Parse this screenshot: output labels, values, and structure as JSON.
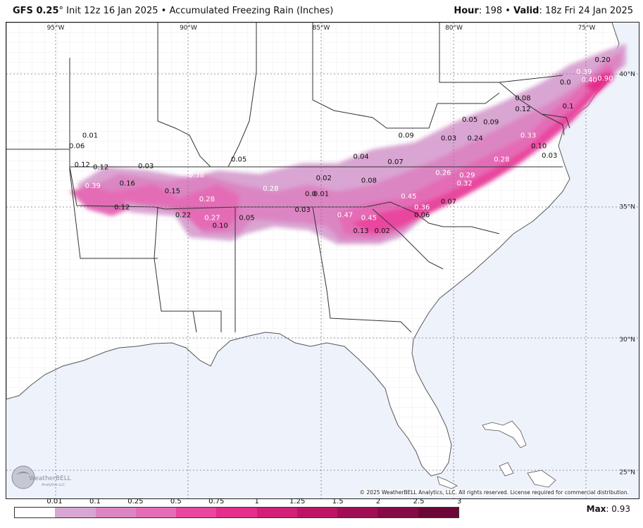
{
  "header": {
    "model": "GFS 0.25",
    "degree": "°",
    "init": "Init 12z 16 Jan 2025",
    "bullet": "•",
    "product": "Accumulated Freezing Rain (Inches)",
    "hour_label": "Hour",
    "hour_value": ": 198",
    "valid_label": "Valid",
    "valid_value": ": 18z Fri 24 Jan 2025"
  },
  "map": {
    "longitude_labels": [
      "95°W",
      "90°W",
      "85°W",
      "80°W",
      "75°W"
    ],
    "latitude_labels": [
      "40°N",
      "35°N",
      "30°N",
      "25°N"
    ],
    "copyright": "© 2025 WeatherBELL Analytics, LLC. All rights reserved. License required for commercial distribution.",
    "logo_text": "WeatherBELL",
    "logo_sub": "Analytics LLC",
    "region": "Southeastern United States"
  },
  "values": [
    {
      "text": "0.01",
      "lon": -93.7,
      "lat": 37.6
    },
    {
      "text": "0.06",
      "lon": -94.2,
      "lat": 37.2
    },
    {
      "text": "0.12",
      "lon": -94.0,
      "lat": 36.5
    },
    {
      "text": "0.12",
      "lon": -93.3,
      "lat": 36.4
    },
    {
      "text": "0.03",
      "lon": -91.6,
      "lat": 36.45
    },
    {
      "text": "0.05",
      "lon": -88.1,
      "lat": 36.7
    },
    {
      "text": "0.39",
      "lon": -93.6,
      "lat": 35.7
    },
    {
      "text": "0.16",
      "lon": -92.3,
      "lat": 35.8
    },
    {
      "text": "0.38",
      "lon": -89.7,
      "lat": 36.1
    },
    {
      "text": "0.15",
      "lon": -90.6,
      "lat": 35.5
    },
    {
      "text": "0.12",
      "lon": -92.5,
      "lat": 34.9
    },
    {
      "text": "0.28",
      "lon": -89.3,
      "lat": 35.2
    },
    {
      "text": "0.22",
      "lon": -90.2,
      "lat": 34.6
    },
    {
      "text": "0.27",
      "lon": -89.1,
      "lat": 34.5
    },
    {
      "text": "0.10",
      "lon": -88.8,
      "lat": 34.2
    },
    {
      "text": "0.05",
      "lon": -87.8,
      "lat": 34.5
    },
    {
      "text": "0.28",
      "lon": -86.9,
      "lat": 35.6
    },
    {
      "text": "0.02",
      "lon": -84.9,
      "lat": 36.0
    },
    {
      "text": "0.01",
      "lon": -85.0,
      "lat": 35.4
    },
    {
      "text": "0.0",
      "lon": -85.4,
      "lat": 35.4
    },
    {
      "text": "0.03",
      "lon": -85.7,
      "lat": 34.8
    },
    {
      "text": "0.04",
      "lon": -83.5,
      "lat": 36.8
    },
    {
      "text": "0.07",
      "lon": -82.2,
      "lat": 36.6
    },
    {
      "text": "0.09",
      "lon": -81.8,
      "lat": 37.6
    },
    {
      "text": "0.08",
      "lon": -83.2,
      "lat": 35.9
    },
    {
      "text": "0.47",
      "lon": -84.1,
      "lat": 34.6
    },
    {
      "text": "0.45",
      "lon": -83.2,
      "lat": 34.5
    },
    {
      "text": "0.45",
      "lon": -81.7,
      "lat": 35.3
    },
    {
      "text": "0.36",
      "lon": -81.2,
      "lat": 34.9
    },
    {
      "text": "0.13",
      "lon": -83.5,
      "lat": 34.0
    },
    {
      "text": "0.02",
      "lon": -82.7,
      "lat": 34.0
    },
    {
      "text": "0.06",
      "lon": -81.2,
      "lat": 34.6
    },
    {
      "text": "0.07",
      "lon": -80.2,
      "lat": 35.1
    },
    {
      "text": "0.26",
      "lon": -80.4,
      "lat": 36.2
    },
    {
      "text": "0.29",
      "lon": -79.5,
      "lat": 36.1
    },
    {
      "text": "0.32",
      "lon": -79.6,
      "lat": 35.8
    },
    {
      "text": "0.28",
      "lon": -78.2,
      "lat": 36.7
    },
    {
      "text": "0.03",
      "lon": -80.2,
      "lat": 37.5
    },
    {
      "text": "0.24",
      "lon": -79.2,
      "lat": 37.5
    },
    {
      "text": "0.05",
      "lon": -79.4,
      "lat": 38.2
    },
    {
      "text": "0.09",
      "lon": -78.6,
      "lat": 38.1
    },
    {
      "text": "0.33",
      "lon": -77.2,
      "lat": 37.6
    },
    {
      "text": "0.10",
      "lon": -76.8,
      "lat": 37.2
    },
    {
      "text": "0.03",
      "lon": -76.4,
      "lat": 36.85
    },
    {
      "text": "0.08",
      "lon": -77.4,
      "lat": 39.0
    },
    {
      "text": "0.12",
      "lon": -77.4,
      "lat": 38.6
    },
    {
      "text": "0.1",
      "lon": -75.7,
      "lat": 38.7
    },
    {
      "text": "0.0",
      "lon": -75.8,
      "lat": 39.6
    },
    {
      "text": "0.39",
      "lon": -75.1,
      "lat": 40.0
    },
    {
      "text": "0.40",
      "lon": -74.9,
      "lat": 39.7
    },
    {
      "text": "0.90",
      "lon": -74.3,
      "lat": 39.75
    },
    {
      "text": "0.20",
      "lon": -74.4,
      "lat": 40.45
    }
  ],
  "legend": {
    "labels": [
      "0.01",
      "0.1",
      "0.25",
      "0.5",
      "0.75",
      "1",
      "1.25",
      "1.5",
      "2",
      "2.5",
      "3"
    ],
    "colors": [
      "#ffffff",
      "#d9a5d2",
      "#dc85c3",
      "#e46cb6",
      "#e9469f",
      "#e52d8c",
      "#d21f77",
      "#bd1566",
      "#a00f55",
      "#860a45",
      "#6c0636"
    ],
    "max_label": "Max",
    "max_value": ": 0.93"
  }
}
